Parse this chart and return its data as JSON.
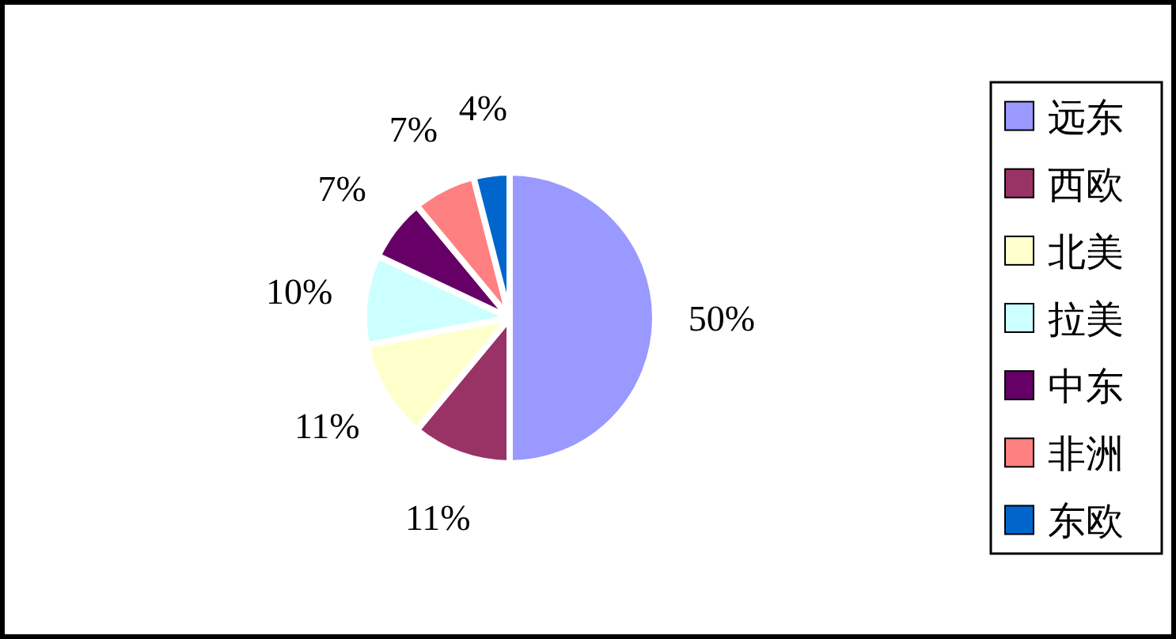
{
  "chart_data": {
    "type": "pie",
    "categories": [
      "远东",
      "西欧",
      "北美",
      "拉美",
      "中东",
      "非洲",
      "东欧"
    ],
    "values": [
      50,
      11,
      11,
      10,
      7,
      7,
      4
    ],
    "colors": [
      "#9999ff",
      "#993366",
      "#ffffcc",
      "#ccffff",
      "#660066",
      "#ff8080",
      "#0066cc"
    ],
    "value_labels": [
      "50%",
      "11%",
      "11%",
      "10%",
      "7%",
      "7%",
      "4%"
    ],
    "legend": "right"
  }
}
